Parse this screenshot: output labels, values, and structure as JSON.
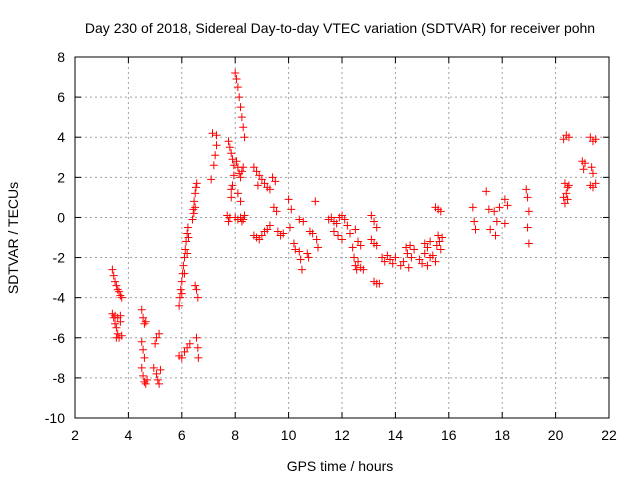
{
  "chart_data": {
    "type": "scatter",
    "title": "Day 230 of 2018, Sidereal Day-to-day VTEC variation (SDTVAR) for receiver pohn",
    "xlabel": "GPS time / hours",
    "ylabel": "SDTVAR / TECUs",
    "xlim": [
      2,
      22
    ],
    "ylim": [
      -10,
      8
    ],
    "xticks": [
      2,
      4,
      6,
      8,
      10,
      12,
      14,
      16,
      18,
      20,
      22
    ],
    "yticks": [
      -10,
      -8,
      -6,
      -4,
      -2,
      0,
      2,
      4,
      6,
      8
    ],
    "grid": true,
    "marker": "+",
    "colors": {
      "marker": "#ff0000",
      "grid": "#a0a0a0",
      "axis": "#000000"
    },
    "series": [
      {
        "name": "pohn",
        "points": [
          [
            3.4,
            -2.6
          ],
          [
            3.45,
            -2.9
          ],
          [
            3.5,
            -3.2
          ],
          [
            3.55,
            -3.4
          ],
          [
            3.6,
            -3.6
          ],
          [
            3.65,
            -3.7
          ],
          [
            3.7,
            -3.9
          ],
          [
            3.75,
            -4.0
          ],
          [
            3.4,
            -4.8
          ],
          [
            3.45,
            -5.0
          ],
          [
            3.5,
            -5.3
          ],
          [
            3.55,
            -5.5
          ],
          [
            3.6,
            -5.8
          ],
          [
            3.65,
            -6.0
          ],
          [
            3.7,
            -5.2
          ],
          [
            3.75,
            -5.9
          ],
          [
            3.5,
            -4.9
          ],
          [
            3.6,
            -5.0
          ],
          [
            3.7,
            -4.9
          ],
          [
            3.55,
            -6.0
          ],
          [
            4.5,
            -4.6
          ],
          [
            4.55,
            -5.0
          ],
          [
            4.6,
            -5.3
          ],
          [
            4.5,
            -6.2
          ],
          [
            4.55,
            -6.6
          ],
          [
            4.6,
            -7.0
          ],
          [
            4.5,
            -7.5
          ],
          [
            4.55,
            -7.9
          ],
          [
            4.6,
            -8.2
          ],
          [
            4.65,
            -8.3
          ],
          [
            4.7,
            -8.1
          ],
          [
            4.65,
            -5.2
          ],
          [
            5.0,
            -6.3
          ],
          [
            5.05,
            -6.0
          ],
          [
            5.15,
            -5.8
          ],
          [
            4.95,
            -7.5
          ],
          [
            5.05,
            -7.8
          ],
          [
            5.1,
            -8.1
          ],
          [
            5.15,
            -8.3
          ],
          [
            5.2,
            -7.6
          ],
          [
            5.9,
            -6.9
          ],
          [
            6.0,
            -7.0
          ],
          [
            6.1,
            -6.7
          ],
          [
            6.2,
            -6.5
          ],
          [
            6.3,
            -6.3
          ],
          [
            5.9,
            -4.4
          ],
          [
            5.93,
            -4.0
          ],
          [
            5.96,
            -3.6
          ],
          [
            6.0,
            -3.2
          ],
          [
            6.03,
            -2.8
          ],
          [
            6.06,
            -2.4
          ],
          [
            6.1,
            -2.0
          ],
          [
            6.13,
            -1.6
          ],
          [
            6.16,
            -1.2
          ],
          [
            6.2,
            -0.8
          ],
          [
            6.23,
            -0.5
          ],
          [
            6.0,
            -3.8
          ],
          [
            6.1,
            -2.8
          ],
          [
            6.2,
            -1.8
          ],
          [
            6.25,
            -1.0
          ],
          [
            6.4,
            -0.1
          ],
          [
            6.43,
            0.4
          ],
          [
            6.46,
            0.8
          ],
          [
            6.5,
            1.2
          ],
          [
            6.53,
            1.5
          ],
          [
            6.56,
            1.7
          ],
          [
            6.45,
            0.2
          ],
          [
            6.5,
            0.5
          ],
          [
            6.5,
            -3.4
          ],
          [
            6.55,
            -3.6
          ],
          [
            6.6,
            -4.0
          ],
          [
            6.55,
            -6.0
          ],
          [
            6.6,
            -6.5
          ],
          [
            6.62,
            -7.0
          ],
          [
            7.1,
            1.9
          ],
          [
            7.2,
            2.6
          ],
          [
            7.25,
            3.1
          ],
          [
            7.3,
            3.6
          ],
          [
            7.15,
            4.2
          ],
          [
            7.3,
            4.1
          ],
          [
            7.7,
            0.1
          ],
          [
            7.75,
            -0.2
          ],
          [
            7.8,
            0.0
          ],
          [
            7.85,
            1.0
          ],
          [
            7.9,
            1.6
          ],
          [
            7.95,
            2.1
          ],
          [
            7.75,
            3.8
          ],
          [
            7.8,
            3.5
          ],
          [
            7.85,
            3.2
          ],
          [
            7.9,
            2.9
          ],
          [
            7.95,
            2.6
          ],
          [
            7.85,
            1.4
          ],
          [
            8.0,
            7.2
          ],
          [
            8.05,
            6.9
          ],
          [
            8.1,
            6.5
          ],
          [
            8.15,
            6.0
          ],
          [
            8.2,
            5.5
          ],
          [
            8.25,
            5.0
          ],
          [
            8.3,
            4.5
          ],
          [
            8.35,
            4.0
          ],
          [
            8.05,
            2.8
          ],
          [
            8.1,
            2.5
          ],
          [
            8.15,
            2.2
          ],
          [
            8.2,
            2.0
          ],
          [
            8.25,
            2.3
          ],
          [
            8.3,
            2.5
          ],
          [
            8.0,
            0.0
          ],
          [
            8.1,
            -0.1
          ],
          [
            8.2,
            0.0
          ],
          [
            8.25,
            -0.2
          ],
          [
            8.3,
            -0.1
          ],
          [
            8.35,
            0.1
          ],
          [
            8.1,
            1.2
          ],
          [
            8.2,
            0.8
          ],
          [
            8.7,
            2.5
          ],
          [
            8.8,
            2.3
          ],
          [
            8.9,
            2.1
          ],
          [
            9.0,
            1.9
          ],
          [
            9.1,
            1.7
          ],
          [
            9.2,
            1.5
          ],
          [
            9.3,
            1.4
          ],
          [
            8.85,
            1.6
          ],
          [
            8.7,
            -0.9
          ],
          [
            8.8,
            -1.0
          ],
          [
            8.9,
            -1.1
          ],
          [
            9.0,
            -0.9
          ],
          [
            9.1,
            -0.7
          ],
          [
            9.2,
            -0.6
          ],
          [
            9.3,
            -0.4
          ],
          [
            9.4,
            2.0
          ],
          [
            9.5,
            1.8
          ],
          [
            9.45,
            0.5
          ],
          [
            9.55,
            0.3
          ],
          [
            9.6,
            -0.7
          ],
          [
            9.7,
            -0.9
          ],
          [
            9.8,
            -0.8
          ],
          [
            10.0,
            0.9
          ],
          [
            10.1,
            0.4
          ],
          [
            10.05,
            -0.5
          ],
          [
            10.2,
            -1.3
          ],
          [
            10.25,
            -1.6
          ],
          [
            10.4,
            -1.7
          ],
          [
            10.45,
            -2.1
          ],
          [
            10.5,
            -2.6
          ],
          [
            10.4,
            -0.1
          ],
          [
            10.55,
            -0.2
          ],
          [
            10.7,
            -1.8
          ],
          [
            10.75,
            -2.0
          ],
          [
            10.8,
            -0.7
          ],
          [
            10.9,
            -0.8
          ],
          [
            11.0,
            0.8
          ],
          [
            11.05,
            -1.1
          ],
          [
            11.1,
            -1.5
          ],
          [
            11.5,
            -0.1
          ],
          [
            11.6,
            0.0
          ],
          [
            11.7,
            -0.2
          ],
          [
            11.8,
            -0.3
          ],
          [
            11.9,
            0.0
          ],
          [
            12.0,
            0.1
          ],
          [
            12.1,
            -0.1
          ],
          [
            12.2,
            -0.4
          ],
          [
            12.3,
            -0.8
          ],
          [
            11.7,
            -0.7
          ],
          [
            11.85,
            -0.9
          ],
          [
            12.0,
            -1.1
          ],
          [
            12.4,
            -1.5
          ],
          [
            12.45,
            -2.0
          ],
          [
            12.5,
            -2.4
          ],
          [
            12.55,
            -2.6
          ],
          [
            12.6,
            -2.2
          ],
          [
            12.7,
            -2.5
          ],
          [
            12.8,
            -2.6
          ],
          [
            12.5,
            -0.6
          ],
          [
            12.6,
            -1.2
          ],
          [
            12.7,
            -1.4
          ],
          [
            13.1,
            0.1
          ],
          [
            13.2,
            -0.2
          ],
          [
            13.3,
            -0.5
          ],
          [
            13.1,
            -1.1
          ],
          [
            13.2,
            -1.3
          ],
          [
            13.3,
            -1.4
          ],
          [
            13.2,
            -3.2
          ],
          [
            13.3,
            -3.3
          ],
          [
            13.4,
            -3.3
          ],
          [
            13.5,
            -2.0
          ],
          [
            13.6,
            -2.2
          ],
          [
            13.7,
            -1.9
          ],
          [
            13.8,
            -2.1
          ],
          [
            13.9,
            -2.3
          ],
          [
            14.0,
            -2.0
          ],
          [
            14.2,
            -2.4
          ],
          [
            14.3,
            -2.2
          ],
          [
            14.4,
            -1.5
          ],
          [
            14.45,
            -1.8
          ],
          [
            14.5,
            -2.5
          ],
          [
            14.55,
            -1.4
          ],
          [
            14.6,
            -2.0
          ],
          [
            14.7,
            -1.6
          ],
          [
            14.9,
            -2.1
          ],
          [
            15.0,
            -2.3
          ],
          [
            15.1,
            -1.8
          ],
          [
            15.2,
            -1.5
          ],
          [
            15.3,
            -1.2
          ],
          [
            15.4,
            -1.9
          ],
          [
            15.5,
            -2.2
          ],
          [
            15.1,
            -1.3
          ],
          [
            15.2,
            -2.4
          ],
          [
            15.3,
            -2.0
          ],
          [
            15.5,
            0.5
          ],
          [
            15.6,
            0.4
          ],
          [
            15.7,
            0.3
          ],
          [
            15.6,
            -0.9
          ],
          [
            15.65,
            -1.2
          ],
          [
            15.7,
            -1.6
          ],
          [
            15.75,
            -1.0
          ],
          [
            15.55,
            -1.4
          ],
          [
            16.9,
            0.5
          ],
          [
            16.95,
            -0.2
          ],
          [
            17.0,
            -0.6
          ],
          [
            17.4,
            1.3
          ],
          [
            17.5,
            0.4
          ],
          [
            17.55,
            -0.6
          ],
          [
            17.7,
            0.3
          ],
          [
            17.8,
            -0.2
          ],
          [
            17.75,
            -0.9
          ],
          [
            17.9,
            0.5
          ],
          [
            18.1,
            0.9
          ],
          [
            18.2,
            0.6
          ],
          [
            18.1,
            -0.3
          ],
          [
            18.9,
            1.4
          ],
          [
            18.95,
            1.0
          ],
          [
            19.0,
            0.3
          ],
          [
            18.95,
            -0.5
          ],
          [
            19.0,
            -1.3
          ],
          [
            20.3,
            3.9
          ],
          [
            20.4,
            4.1
          ],
          [
            20.5,
            4.0
          ],
          [
            20.35,
            1.7
          ],
          [
            20.45,
            1.5
          ],
          [
            20.5,
            1.6
          ],
          [
            20.3,
            1.0
          ],
          [
            20.35,
            0.7
          ],
          [
            20.4,
            1.2
          ],
          [
            20.45,
            0.9
          ],
          [
            21.0,
            2.8
          ],
          [
            21.05,
            2.4
          ],
          [
            21.1,
            2.7
          ],
          [
            21.3,
            4.0
          ],
          [
            21.4,
            3.8
          ],
          [
            21.5,
            3.9
          ],
          [
            21.35,
            2.5
          ],
          [
            21.4,
            2.2
          ],
          [
            21.3,
            1.6
          ],
          [
            21.4,
            1.5
          ],
          [
            21.5,
            1.7
          ]
        ]
      }
    ]
  }
}
